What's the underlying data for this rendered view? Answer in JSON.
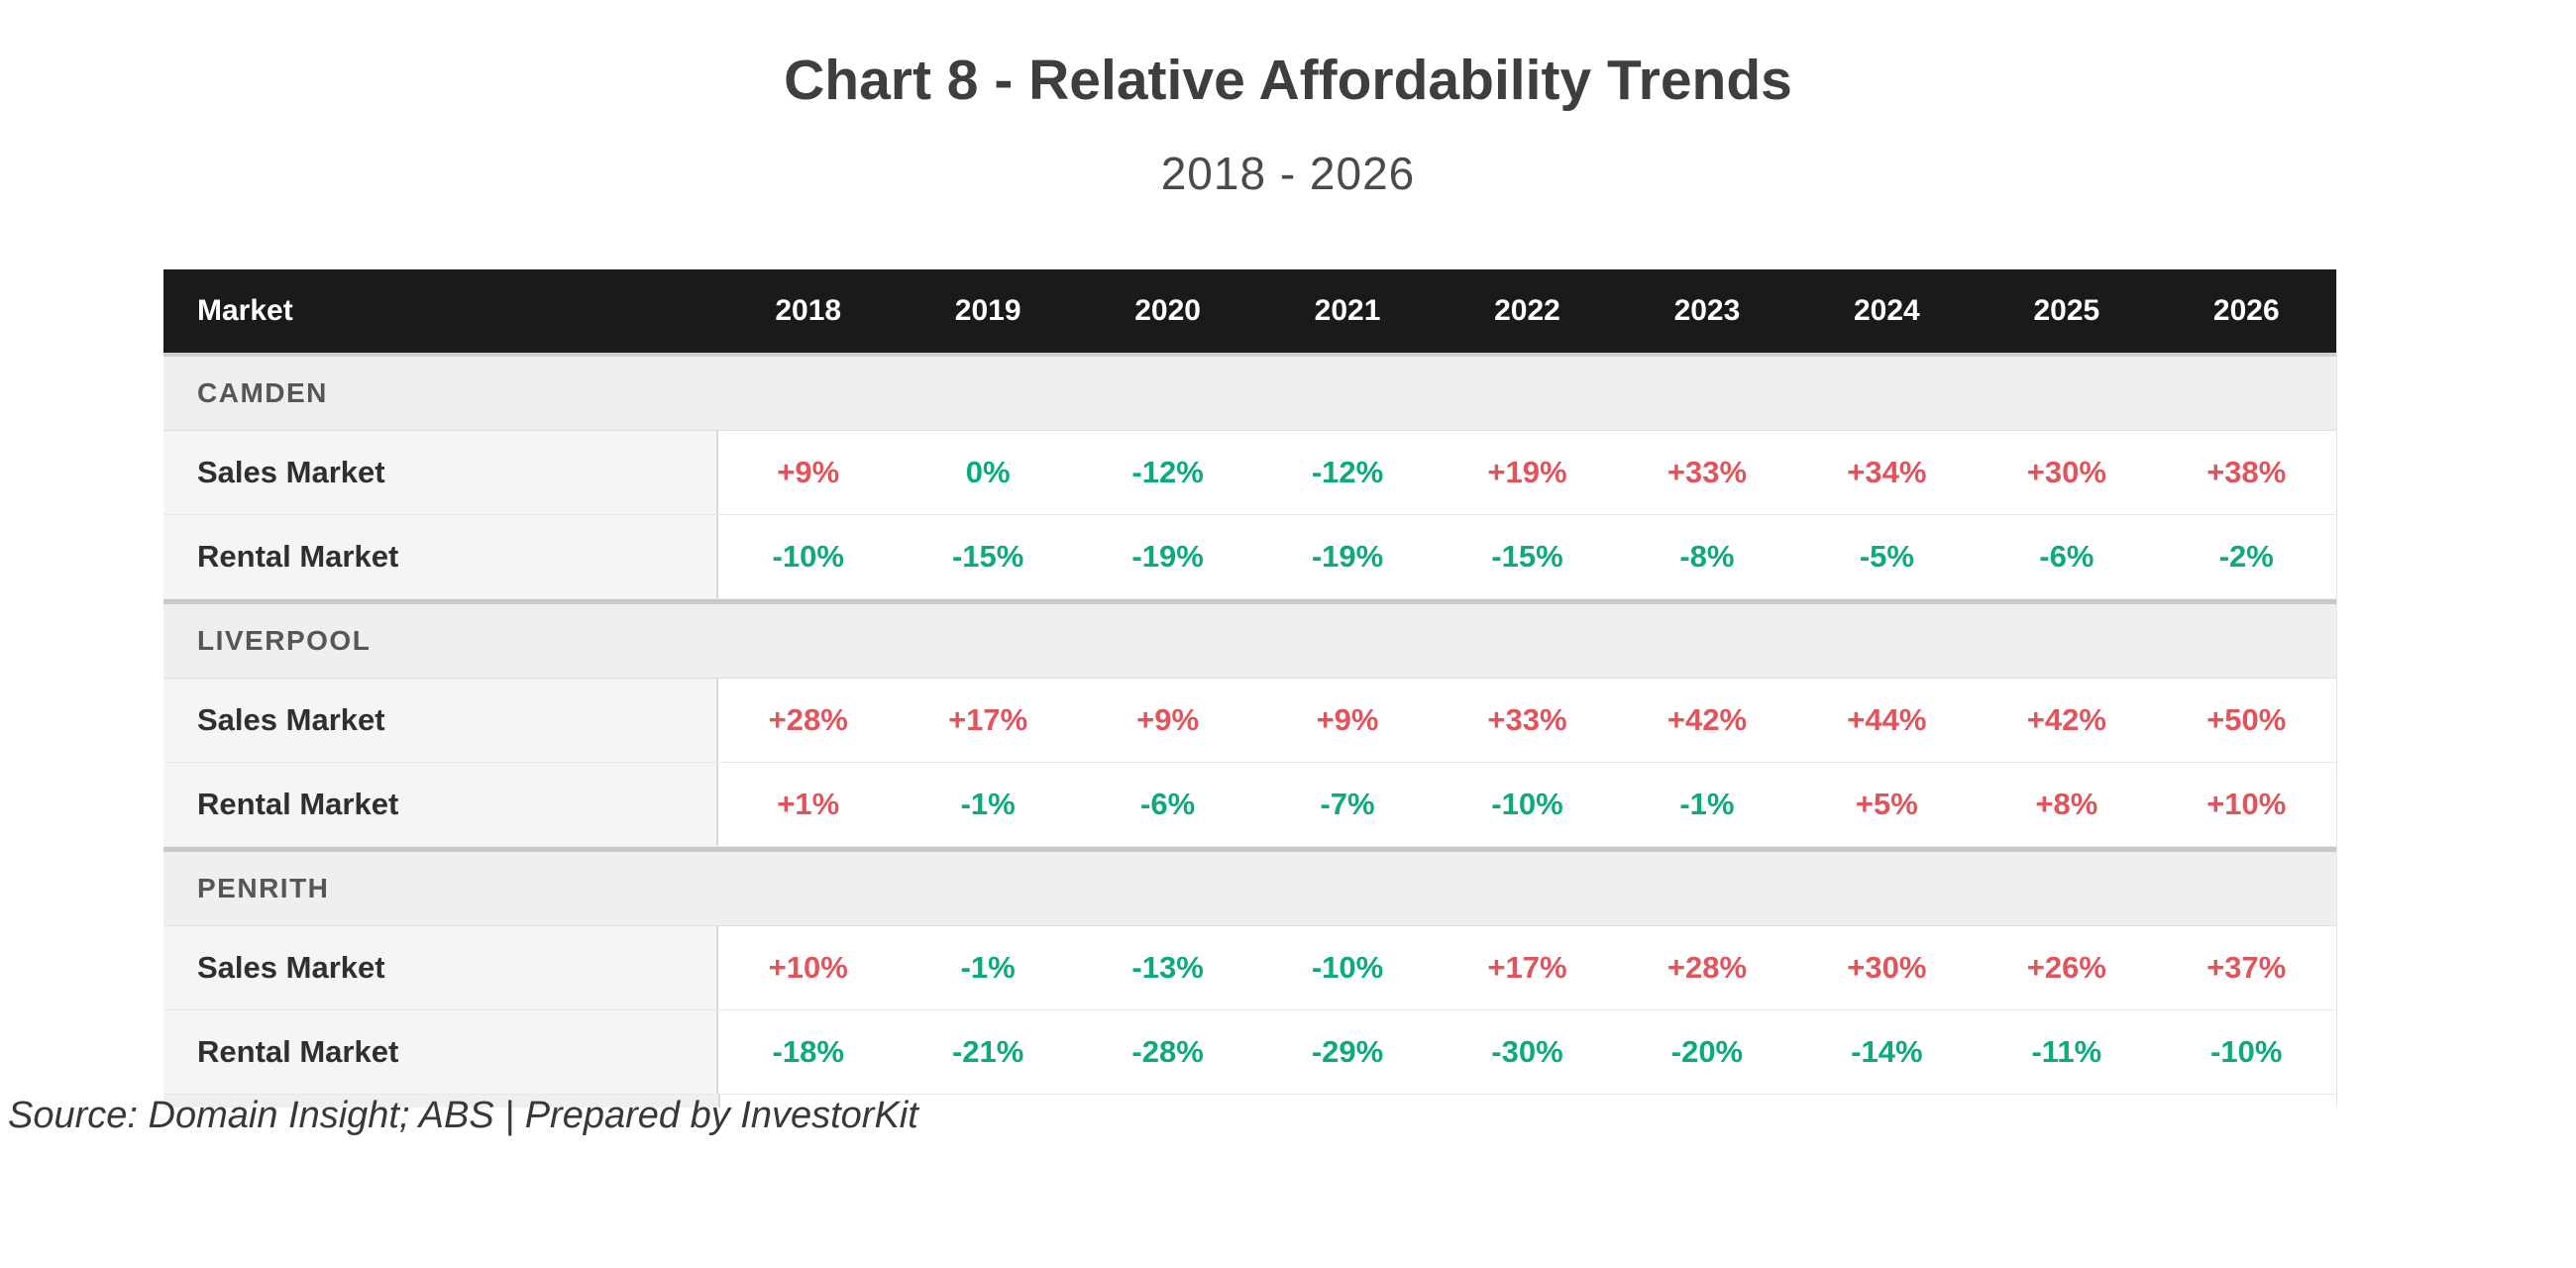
{
  "page": {
    "title": "Chart 8 - Relative Affordability Trends",
    "subtitle": "2018 - 2026",
    "source_note": "Source: Domain Insight; ABS | Prepared by InvestorKit"
  },
  "colors": {
    "increase": "#e2545b",
    "decrease": "#0caa7e",
    "header_bg": "#1a1a1a",
    "header_text": "#ffffff",
    "section_bg": "#efefef",
    "label_bg": "#f5f5f5"
  },
  "chart_data": {
    "type": "table",
    "title": "Chart 8 - Relative Affordability Trends",
    "subtitle": "2018 - 2026",
    "columns": [
      "Market",
      "2018",
      "2019",
      "2020",
      "2021",
      "2022",
      "2023",
      "2024",
      "2025",
      "2026"
    ],
    "sections": [
      {
        "name": "CAMDEN",
        "rows": [
          {
            "label": "Sales Market",
            "values": [
              "+9%",
              "0%",
              "-12%",
              "-12%",
              "+19%",
              "+33%",
              "+34%",
              "+30%",
              "+38%"
            ]
          },
          {
            "label": "Rental Market",
            "values": [
              "-10%",
              "-15%",
              "-19%",
              "-19%",
              "-15%",
              "-8%",
              "-5%",
              "-6%",
              "-2%"
            ]
          }
        ]
      },
      {
        "name": "LIVERPOOL",
        "rows": [
          {
            "label": "Sales Market",
            "values": [
              "+28%",
              "+17%",
              "+9%",
              "+9%",
              "+33%",
              "+42%",
              "+44%",
              "+42%",
              "+50%"
            ]
          },
          {
            "label": "Rental Market",
            "values": [
              "+1%",
              "-1%",
              "-6%",
              "-7%",
              "-10%",
              "-1%",
              "+5%",
              "+8%",
              "+10%"
            ]
          }
        ]
      },
      {
        "name": "PENRITH",
        "rows": [
          {
            "label": "Sales Market",
            "values": [
              "+10%",
              "-1%",
              "-13%",
              "-10%",
              "+17%",
              "+28%",
              "+30%",
              "+26%",
              "+37%"
            ]
          },
          {
            "label": "Rental Market",
            "values": [
              "-18%",
              "-21%",
              "-28%",
              "-29%",
              "-30%",
              "-20%",
              "-14%",
              "-11%",
              "-10%"
            ]
          }
        ]
      }
    ]
  }
}
